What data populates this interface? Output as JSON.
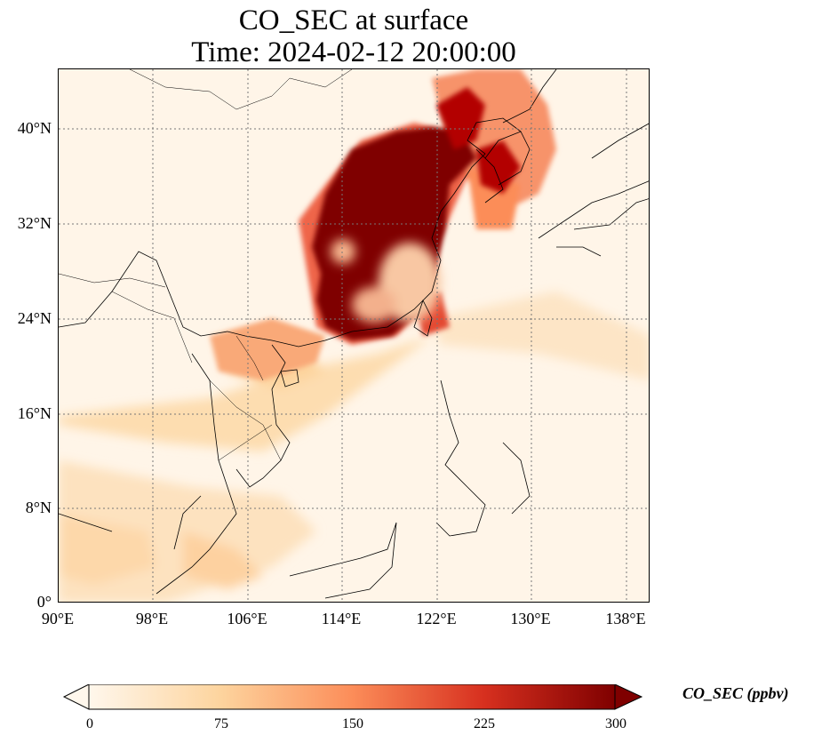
{
  "title": {
    "line1": "CO_SEC at surface",
    "line2": "Time: 2024-02-12 20:00:00"
  },
  "map": {
    "variable": "CO_SEC",
    "colormap": "OrRd",
    "lat_labels": [
      "40°N",
      "32°N",
      "24°N",
      "16°N",
      "8°N",
      "0°"
    ],
    "lon_labels": [
      "90°E",
      "98°E",
      "106°E",
      "114°E",
      "122°E",
      "130°E",
      "138°E"
    ],
    "lon_range": [
      90,
      140
    ],
    "lat_range": [
      0,
      45
    ],
    "gridlines": "dotted"
  },
  "colorbar": {
    "label": "CO_SEC (ppbv)",
    "ticks": [
      "0",
      "75",
      "150",
      "225",
      "300"
    ],
    "range": [
      0,
      300
    ],
    "extend": "both",
    "colors": [
      "#fff7ec",
      "#fdd49e",
      "#fc8d59",
      "#d7301f",
      "#7f0000"
    ]
  }
}
